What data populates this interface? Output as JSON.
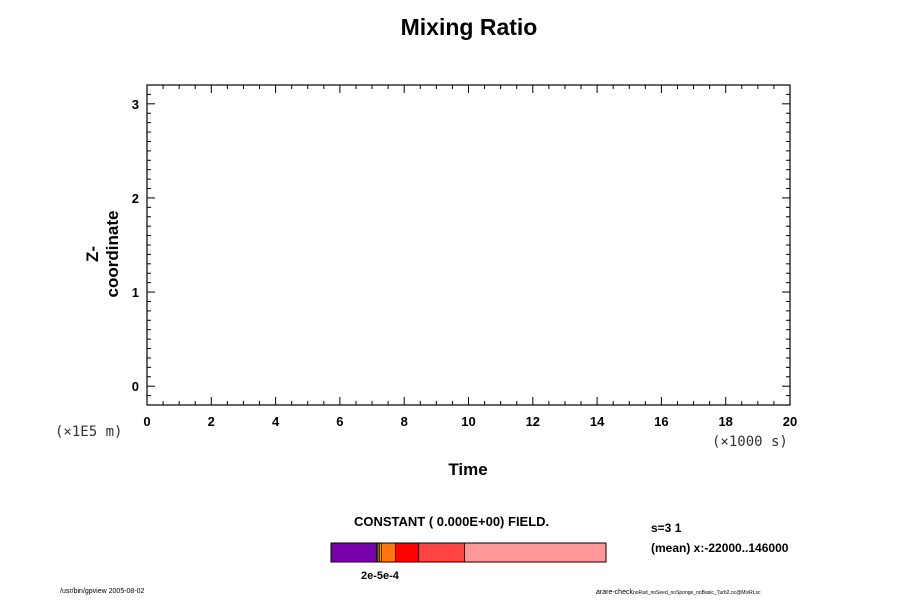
{
  "chart_data": {
    "type": "heatmap",
    "title": "Mixing Ratio",
    "xlabel": "Time",
    "ylabel": "Z-coordinate",
    "x_unit": "(×1000 s)",
    "y_unit": "(×1E5 m)",
    "xlim": [
      0,
      20
    ],
    "ylim": [
      -0.2,
      3.2
    ],
    "x_ticks": [
      0,
      2,
      4,
      6,
      8,
      10,
      12,
      14,
      16,
      18,
      20
    ],
    "y_ticks": [
      0,
      1,
      2,
      3
    ],
    "field_note": "CONSTANT ( 0.000E+00) FIELD.",
    "grid": false,
    "colorbar": {
      "segments": [
        {
          "frac": 0.165,
          "color": "#7700aa"
        },
        {
          "frac": 0.006,
          "color": "#336699"
        },
        {
          "frac": 0.006,
          "color": "#ddaa00"
        },
        {
          "frac": 0.007,
          "color": "#ffaa00"
        },
        {
          "frac": 0.05,
          "color": "#ff7711"
        },
        {
          "frac": 0.085,
          "color": "#ff0000"
        },
        {
          "frac": 0.167,
          "color": "#ff4444"
        },
        {
          "frac": 0.514,
          "color": "#ff9999"
        }
      ],
      "tick_label": "2e-5e-4"
    }
  },
  "info": {
    "line1": "s=3 1",
    "line2": "(mean) x:-22000..146000"
  },
  "footer": {
    "left": "/usr/bin/gpview 2005-08-02",
    "right_main": "arare-check",
    "right_small": "noRad_noSeed_noSponge_noBasic_Turb2.nc@MixRt,sc"
  }
}
